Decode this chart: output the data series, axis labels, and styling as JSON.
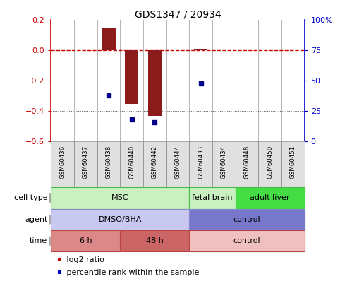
{
  "title": "GDS1347 / 20934",
  "samples": [
    "GSM60436",
    "GSM60437",
    "GSM60438",
    "GSM60440",
    "GSM60442",
    "GSM60444",
    "GSM60433",
    "GSM60434",
    "GSM60448",
    "GSM60450",
    "GSM60451"
  ],
  "log2_ratio": [
    0.0,
    0.0,
    0.15,
    -0.35,
    -0.43,
    0.0,
    0.01,
    0.0,
    0.0,
    0.0,
    0.0
  ],
  "percentile_rank_pct": [
    null,
    null,
    38,
    18,
    16,
    null,
    48,
    null,
    null,
    null,
    null
  ],
  "bar_color": "#8b1a1a",
  "dot_color": "#00008b",
  "left_ylim": [
    -0.6,
    0.2
  ],
  "right_ylim": [
    0,
    100
  ],
  "left_yticks": [
    -0.6,
    -0.4,
    -0.2,
    0.0,
    0.2
  ],
  "right_yticks": [
    0,
    25,
    50,
    75,
    100
  ],
  "right_yticklabels": [
    "0",
    "25",
    "50",
    "75",
    "100%"
  ],
  "hline_color": "#cc0000",
  "dot_gridline_vals": [
    -0.2,
    -0.4
  ],
  "dot_gridline_color": "#555555",
  "vline_color": "#999999",
  "cell_type_row": {
    "label": "cell type",
    "segments": [
      {
        "text": "MSC",
        "start": 0,
        "end": 5,
        "color": "#c8f0c0",
        "edgecolor": "#44bb44"
      },
      {
        "text": "fetal brain",
        "start": 6,
        "end": 7,
        "color": "#c8f0c0",
        "edgecolor": "#44bb44"
      },
      {
        "text": "adult liver",
        "start": 8,
        "end": 10,
        "color": "#44dd44",
        "edgecolor": "#44bb44"
      }
    ]
  },
  "agent_row": {
    "label": "agent",
    "segments": [
      {
        "text": "DMSO/BHA",
        "start": 0,
        "end": 5,
        "color": "#c8c8f0",
        "edgecolor": "#8888cc"
      },
      {
        "text": "control",
        "start": 6,
        "end": 10,
        "color": "#7777cc",
        "edgecolor": "#8888cc"
      }
    ]
  },
  "time_row": {
    "label": "time",
    "segments": [
      {
        "text": "6 h",
        "start": 0,
        "end": 2,
        "color": "#dd8888",
        "edgecolor": "#bb4444"
      },
      {
        "text": "48 h",
        "start": 3,
        "end": 5,
        "color": "#cc6666",
        "edgecolor": "#bb4444"
      },
      {
        "text": "control",
        "start": 6,
        "end": 10,
        "color": "#f0c0c0",
        "edgecolor": "#bb4444"
      }
    ]
  },
  "legend_items": [
    {
      "label": "log2 ratio",
      "color": "#cc0000"
    },
    {
      "label": "percentile rank within the sample",
      "color": "#0000cc"
    }
  ],
  "bg_color": "#ffffff",
  "sample_box_color": "#e0e0e0",
  "sample_box_edge": "#888888"
}
